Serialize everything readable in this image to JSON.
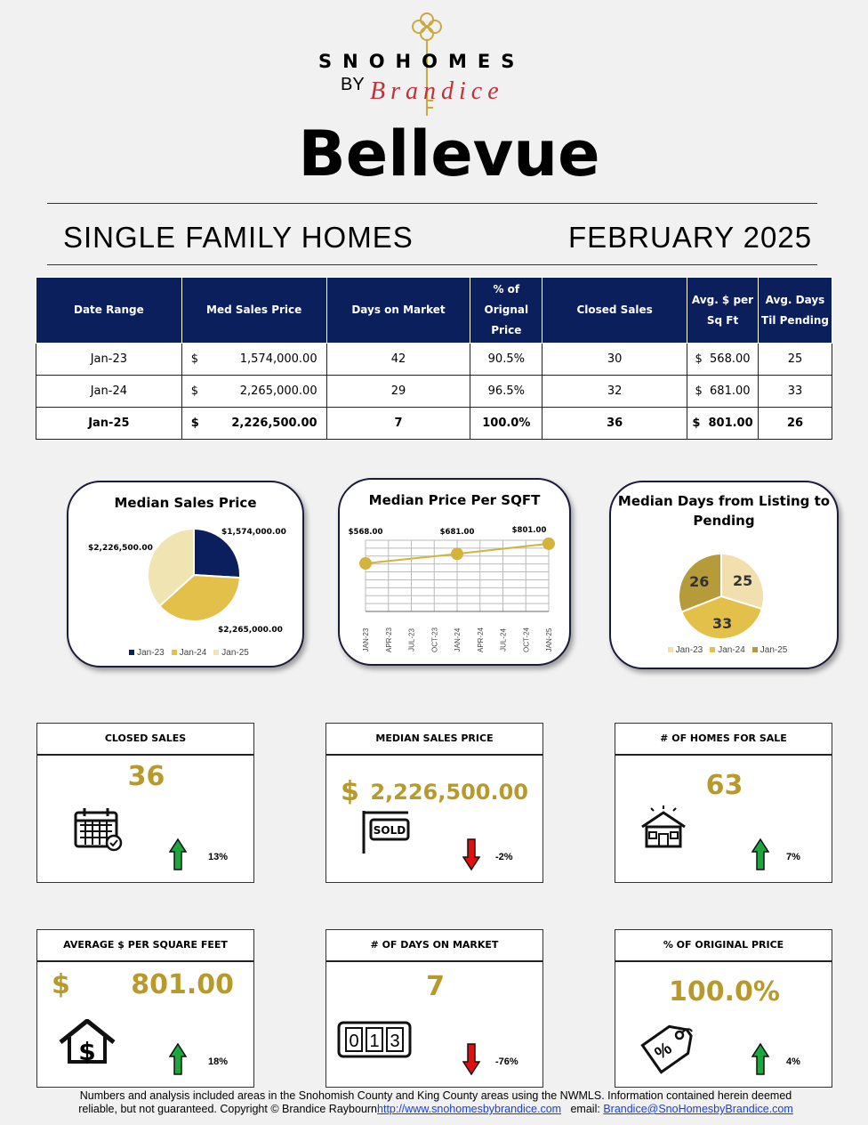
{
  "logo": {
    "brand": "SNOHOMES",
    "by": "BY",
    "signature": "Brandice"
  },
  "city": "Bellevue",
  "subtitle_left": "SINGLE FAMILY HOMES",
  "subtitle_right": "FEBRUARY 2025",
  "table": {
    "headers": [
      "Date Range",
      "Med Sales Price",
      "Days on Market",
      "% of Orignal Price",
      "Closed Sales",
      "Avg. $ per Sq Ft",
      "Avg. Days Til Pending"
    ],
    "rows": [
      {
        "date": "Jan-23",
        "cur": "$",
        "price": "1,574,000.00",
        "dom": "42",
        "pct": "90.5%",
        "closed": "30",
        "cur2": "$",
        "sqft": "568.00",
        "pending": "25"
      },
      {
        "date": "Jan-24",
        "cur": "$",
        "price": "2,265,000.00",
        "dom": "29",
        "pct": "96.5%",
        "closed": "32",
        "cur2": "$",
        "sqft": "681.00",
        "pending": "33"
      },
      {
        "date": "Jan-25",
        "cur": "$",
        "price": "2,226,500.00",
        "dom": "7",
        "pct": "100.0%",
        "closed": "36",
        "cur2": "$",
        "sqft": "801.00",
        "pending": "26"
      }
    ]
  },
  "chart_data": [
    {
      "type": "pie",
      "title": "Median Sales Price",
      "categories": [
        "Jan-23",
        "Jan-24",
        "Jan-25"
      ],
      "values": [
        1574000,
        2265000,
        2226500
      ],
      "labels": [
        "$1,574,000.00",
        "$2,265,000.00",
        "$2,226,500.00"
      ],
      "colors": [
        "#0b1f5e",
        "#e3c04a",
        "#f1e4b3"
      ],
      "legend": "bottom"
    },
    {
      "type": "line",
      "title": "Median Price Per SQFT",
      "x": [
        "JAN-23",
        "APR-23",
        "JUL-23",
        "OCT-23",
        "JAN-24",
        "APR-24",
        "JUL-24",
        "OCT-24",
        "JAN-25"
      ],
      "points": [
        {
          "x": 0,
          "y": 568,
          "label": "$568.00"
        },
        {
          "x": 4,
          "y": 681,
          "label": "$681.00"
        },
        {
          "x": 8,
          "y": 801,
          "label": "$801.00"
        }
      ],
      "ylim": [
        0,
        1000
      ],
      "color": "#d4b23e",
      "grid": true
    },
    {
      "type": "pie",
      "title": "Median Days from Listing to Pending",
      "categories": [
        "Jan-23",
        "Jan-24",
        "Jan-25"
      ],
      "values": [
        25,
        33,
        26
      ],
      "labels": [
        "25",
        "33",
        "26"
      ],
      "colors": [
        "#f1e0ad",
        "#e3c04a",
        "#b59b3a"
      ],
      "legend": "bottom"
    }
  ],
  "kpis": [
    {
      "title": "CLOSED SALES",
      "value": "36",
      "change": "13%",
      "dir": "up",
      "icon": "calendar-icon"
    },
    {
      "title": "MEDIAN SALES PRICE",
      "cur": "$",
      "value": "2,226,500.00",
      "change": "-2%",
      "dir": "down",
      "icon": "sold-sign-icon",
      "sign": "SOLD"
    },
    {
      "title": "# OF HOMES FOR SALE",
      "value": "63",
      "change": "7%",
      "dir": "up",
      "icon": "house-icon"
    },
    {
      "title": "AVERAGE $ PER SQUARE FEET",
      "cur": "$",
      "value": "801.00",
      "change": "18%",
      "dir": "up",
      "icon": "house-dollar-icon"
    },
    {
      "title": "# OF DAYS ON MARKET",
      "value": "7",
      "change": "-76%",
      "dir": "down",
      "icon": "counter-icon",
      "counter": "013"
    },
    {
      "title": "% OF ORIGINAL PRICE",
      "value": "100.0%",
      "change": "4%",
      "dir": "up",
      "icon": "price-tag-icon"
    }
  ],
  "colors": {
    "navy": "#0a1f5c",
    "gold": "#b89a2c",
    "up": "#1aa83c",
    "down": "#e01010"
  },
  "footer": {
    "text1": "Numbers and analysis included areas in the Snohomish County and King County areas using the NWMLS.  Information contained herein deemed",
    "text2": "reliable, but not guaranteed. Copyright © Brandice Raybourn",
    "url": "http://www.snohomesbybrandice.com",
    "email_label": "email:",
    "email": "Brandice@SnoHomesbyBrandice.com"
  }
}
